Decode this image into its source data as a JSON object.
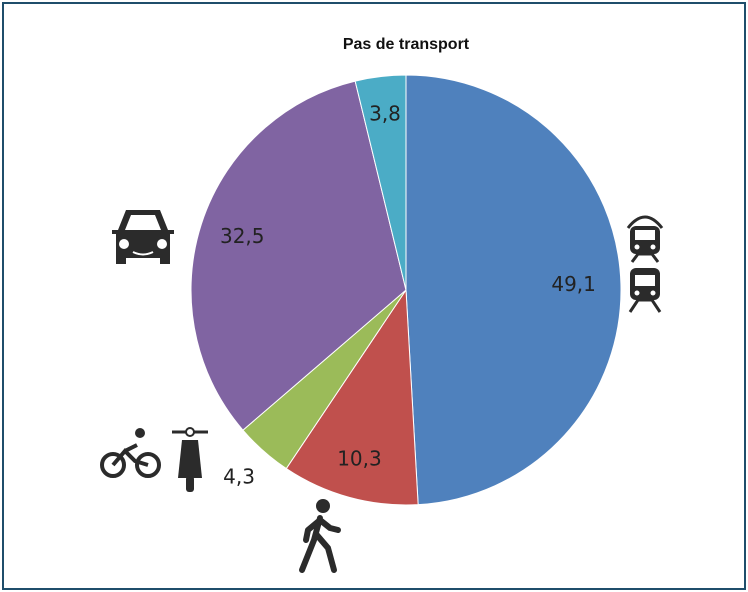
{
  "chart_data": {
    "type": "pie",
    "title": "Pas de transport",
    "values": [
      49.1,
      10.3,
      4.3,
      32.5,
      3.8
    ],
    "value_labels": [
      "49,1",
      "10,3",
      "4,3",
      "32,5",
      "3,8"
    ],
    "colors": [
      "#4f81bd",
      "#c0504d",
      "#9bbb59",
      "#8064a2",
      "#4bacc6"
    ]
  }
}
